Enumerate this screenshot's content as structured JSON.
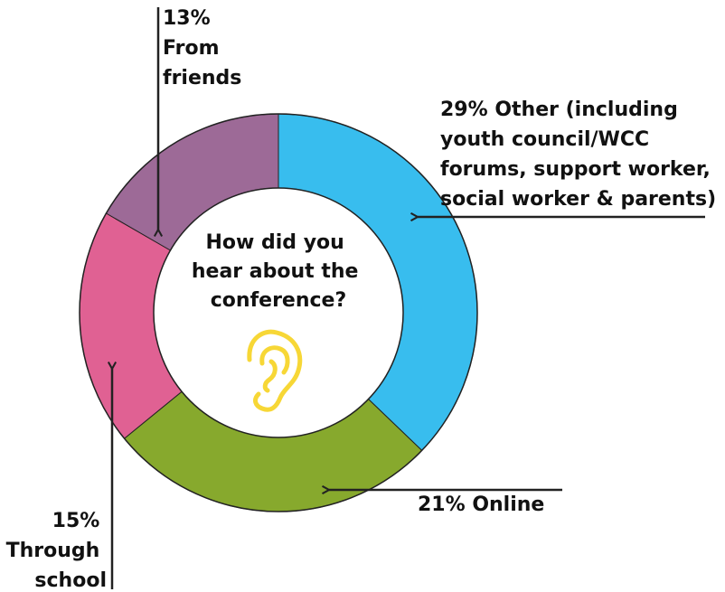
{
  "chart_data": {
    "type": "pie",
    "title": "How did you hear about the conference?",
    "title_lines": [
      "How did you",
      "hear about the",
      "conference?"
    ],
    "hole": true,
    "slices": [
      {
        "key": "other",
        "value": 29,
        "color": "#38BDEE",
        "label_lines": [
          "29% Other (including",
          "youth council/WCC",
          "forums, support worker,",
          "social worker & parents)"
        ]
      },
      {
        "key": "online",
        "value": 21,
        "color": "#87A92D",
        "label_lines": [
          "21% Online"
        ]
      },
      {
        "key": "school",
        "value": 15,
        "color": "#E06193",
        "label_lines": [
          "15%",
          "Through",
          "school"
        ]
      },
      {
        "key": "friends",
        "value": 13,
        "color": "#9D6A97",
        "label_lines": [
          "13%",
          "From",
          "friends"
        ]
      }
    ],
    "center_icon": "ear-icon",
    "center_icon_color": "#F7D736"
  }
}
